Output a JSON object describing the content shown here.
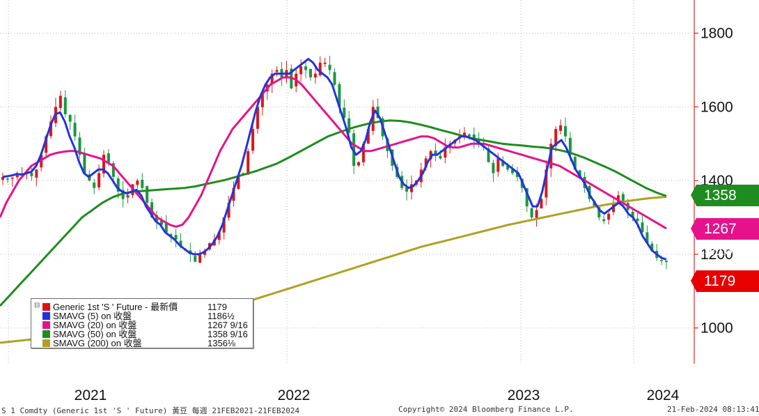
{
  "chart_data": {
    "type": "line",
    "subtype": "candlestick with moving averages",
    "x_axis": {
      "tick_labels": [
        "2021",
        "2022",
        "2023",
        "2024"
      ]
    },
    "y_axis": {
      "tick_labels": [
        "1000",
        "1200",
        "1400",
        "1600",
        "1800"
      ],
      "ylim": [
        903,
        1890
      ],
      "position": "right"
    },
    "grid": true,
    "legend_placement": "bottom-left",
    "candle_colors": {
      "up": "#d7191c",
      "down": "#1a9641"
    },
    "price_series": {
      "name": "Generic 1st 'S ' Future - 最新價",
      "color": "#e01010",
      "approx_weekly_close": [
        1410,
        1405,
        1408,
        1415,
        1420,
        1425,
        1412,
        1430,
        1470,
        1520,
        1560,
        1600,
        1630,
        1580,
        1560,
        1520,
        1470,
        1420,
        1400,
        1380,
        1420,
        1470,
        1450,
        1410,
        1370,
        1350,
        1360,
        1390,
        1400,
        1380,
        1340,
        1300,
        1290,
        1280,
        1260,
        1250,
        1240,
        1220,
        1210,
        1200,
        1180,
        1200,
        1210,
        1230,
        1240,
        1260,
        1300,
        1340,
        1380,
        1410,
        1420,
        1480,
        1540,
        1600,
        1640,
        1660,
        1690,
        1700,
        1680,
        1700,
        1650,
        1690,
        1710,
        1700,
        1680,
        1690,
        1720,
        1720,
        1700,
        1660,
        1600,
        1570,
        1530,
        1440,
        1450,
        1500,
        1540,
        1600,
        1570,
        1520,
        1480,
        1440,
        1410,
        1380,
        1370,
        1390,
        1400,
        1430,
        1460,
        1480,
        1470,
        1460,
        1490,
        1500,
        1510,
        1520,
        1530,
        1520,
        1510,
        1500,
        1490,
        1450,
        1420,
        1460,
        1440,
        1430,
        1420,
        1410,
        1380,
        1330,
        1300,
        1320,
        1350,
        1430,
        1500,
        1540,
        1550,
        1520,
        1470,
        1430,
        1410,
        1380,
        1350,
        1330,
        1300,
        1290,
        1310,
        1340,
        1360,
        1340,
        1320,
        1300,
        1290,
        1260,
        1230,
        1210,
        1190,
        1182,
        1179
      ]
    },
    "series": [
      {
        "name": "SMAVG (5)  on 收盤",
        "color": "#2233dd",
        "last_value": "1186½",
        "values": [
          1410,
          1412,
          1414,
          1418,
          1416,
          1420,
          1424,
          1440,
          1470,
          1510,
          1550,
          1580,
          1585,
          1560,
          1520,
          1490,
          1450,
          1420,
          1410,
          1420,
          1430,
          1430,
          1420,
          1400,
          1380,
          1370,
          1365,
          1370,
          1375,
          1360,
          1330,
          1310,
          1290,
          1280,
          1260,
          1250,
          1240,
          1225,
          1215,
          1205,
          1200,
          1200,
          1205,
          1215,
          1230,
          1250,
          1280,
          1320,
          1360,
          1400,
          1440,
          1490,
          1540,
          1590,
          1630,
          1660,
          1680,
          1690,
          1690,
          1690,
          1690,
          1700,
          1710,
          1720,
          1730,
          1720,
          1700,
          1690,
          1680,
          1660,
          1620,
          1580,
          1540,
          1490,
          1470,
          1480,
          1510,
          1560,
          1590,
          1570,
          1530,
          1490,
          1450,
          1410,
          1390,
          1380,
          1385,
          1400,
          1420,
          1450,
          1470,
          1470,
          1480,
          1490,
          1500,
          1510,
          1520,
          1520,
          1515,
          1510,
          1500,
          1490,
          1480,
          1470,
          1460,
          1450,
          1440,
          1430,
          1420,
          1390,
          1360,
          1330,
          1330,
          1370,
          1430,
          1490,
          1500,
          1510,
          1490,
          1460,
          1430,
          1410,
          1390,
          1360,
          1340,
          1320,
          1310,
          1320,
          1330,
          1340,
          1330,
          1310,
          1300,
          1280,
          1250,
          1230,
          1210,
          1200,
          1190,
          1186
        ]
      },
      {
        "name": "SMAVG (20)  on 收盤",
        "color": "#e6128c",
        "last_value": "1267 9/16",
        "values": [
          1300,
          1340,
          1370,
          1400,
          1420,
          1440,
          1450,
          1460,
          1470,
          1475,
          1478,
          1480,
          1480,
          1475,
          1470,
          1465,
          1460,
          1450,
          1440,
          1420,
          1400,
          1380,
          1360,
          1340,
          1320,
          1300,
          1290,
          1280,
          1275,
          1280,
          1300,
          1330,
          1360,
          1400,
          1440,
          1480,
          1510,
          1540,
          1560,
          1580,
          1600,
          1620,
          1640,
          1660,
          1670,
          1680,
          1680,
          1675,
          1660,
          1640,
          1620,
          1600,
          1580,
          1560,
          1540,
          1520,
          1500,
          1490,
          1480,
          1480,
          1485,
          1490,
          1495,
          1500,
          1505,
          1510,
          1515,
          1520,
          1520,
          1515,
          1505,
          1495,
          1490,
          1490,
          1495,
          1500,
          1500,
          1500,
          1495,
          1490,
          1485,
          1480,
          1475,
          1470,
          1465,
          1460,
          1455,
          1450,
          1445,
          1440,
          1430,
          1420,
          1410,
          1400,
          1390,
          1380,
          1370,
          1360,
          1350,
          1340,
          1330,
          1320,
          1310,
          1300,
          1290,
          1280,
          1270
        ]
      },
      {
        "name": "SMAVG (50)  on 收盤",
        "color": "#1e8c1e",
        "last_value": "1358 9/16",
        "values": [
          1060,
          1090,
          1120,
          1150,
          1180,
          1210,
          1240,
          1270,
          1300,
          1320,
          1340,
          1355,
          1365,
          1370,
          1372,
          1374,
          1376,
          1378,
          1380,
          1384,
          1390,
          1396,
          1402,
          1410,
          1418,
          1426,
          1436,
          1446,
          1460,
          1475,
          1490,
          1505,
          1520,
          1530,
          1540,
          1548,
          1555,
          1560,
          1563,
          1562,
          1558,
          1552,
          1545,
          1537,
          1530,
          1522,
          1515,
          1510,
          1505,
          1500,
          1497,
          1495,
          1492,
          1490,
          1486,
          1480,
          1472,
          1462,
          1450,
          1438,
          1425,
          1410,
          1395,
          1380,
          1368,
          1358
        ]
      },
      {
        "name": "SMAVG (200)  on 收盤",
        "color": "#b0a020",
        "last_value": "1356⅛",
        "values": [
          960,
          965,
          970,
          975,
          980,
          985,
          990,
          996,
          1002,
          1010,
          1018,
          1028,
          1040,
          1055,
          1070,
          1085,
          1100,
          1115,
          1130,
          1145,
          1160,
          1175,
          1190,
          1205,
          1220,
          1232,
          1244,
          1256,
          1268,
          1280,
          1290,
          1300,
          1310,
          1320,
          1330,
          1338,
          1346,
          1352,
          1356
        ]
      }
    ],
    "right_labels": [
      {
        "text": "1358 9/16",
        "color": "#1e8c1e"
      },
      {
        "text": "1267 9/16",
        "color": "#e6128c"
      },
      {
        "text": "1179",
        "color": "#e60000"
      }
    ]
  },
  "legend": {
    "rows": [
      {
        "label": "Generic 1st 'S ' Future - 最新價",
        "value": "1179",
        "color": "#e01010"
      },
      {
        "label": "SMAVG (5)  on 收盤",
        "value": "1186½",
        "color": "#2233dd"
      },
      {
        "label": "SMAVG (20)  on 收盤",
        "value": "1267 9/16",
        "color": "#e6128c"
      },
      {
        "label": "SMAVG (50)  on 收盤",
        "value": "1358 9/16",
        "color": "#1e8c1e"
      },
      {
        "label": "SMAVG (200)  on 收盤",
        "value": "1356⅛",
        "color": "#b0a020"
      }
    ]
  },
  "footer": {
    "left": "S 1 Comdty (Generic 1st 'S ' Future) 黃豆  每週 21FEB2021-21FEB2024",
    "center": "Copyright© 2024 Bloomberg Finance L.P.",
    "right": "21-Feb-2024 08:13:41"
  }
}
